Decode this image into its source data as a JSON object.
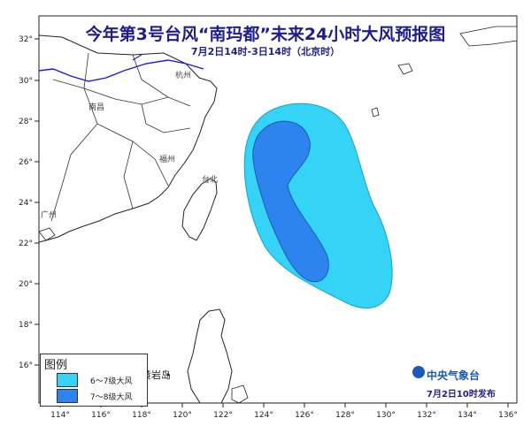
{
  "title": "今年第3号台风“南玛都”未来24小时大风预报图",
  "subtitle": "7月2日14时-3日14时（北京时）",
  "x_ticks": [
    "114°",
    "116°",
    "118°",
    "120°",
    "122°",
    "124°",
    "126°",
    "128°",
    "130°",
    "132°",
    "134°",
    "136°"
  ],
  "y_ticks": [
    "32°",
    "30°",
    "28°",
    "26°",
    "24°",
    "22°",
    "20°",
    "18°",
    "16°"
  ],
  "place_labels": {
    "hangzhou": "杭州",
    "nanchang": "南昌",
    "fuzhou": "福州",
    "taibei": "台北",
    "guangzhou": "广州",
    "huangyan": "黄岩岛"
  },
  "legend": {
    "title": "图例",
    "items": [
      {
        "label": "6～7级大风",
        "color": "#35d3f5"
      },
      {
        "label": "7～8级大风",
        "color": "#2d84ee"
      }
    ]
  },
  "issuer": "中央气象台",
  "issue_time": "7月2日10时发布",
  "colors": {
    "title": "#1d1d8c",
    "border": "#222222",
    "river": "#1a1ae6"
  }
}
